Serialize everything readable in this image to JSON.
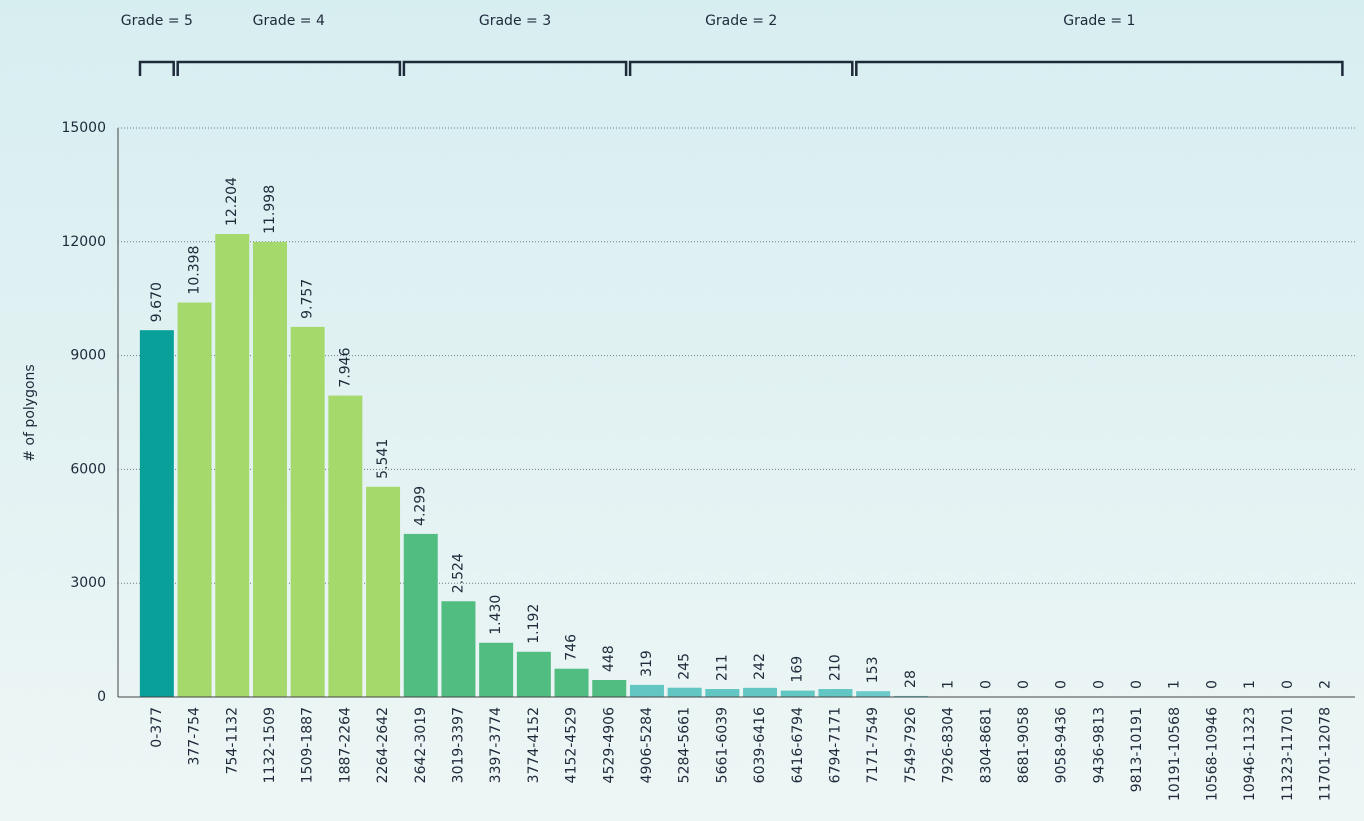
{
  "chart_data": {
    "type": "bar",
    "y_label": "# of polygons",
    "categories": [
      "0-377",
      "377-754",
      "754-1132",
      "1132-1509",
      "1509-1887",
      "1887-2264",
      "2264-2642",
      "2642-3019",
      "3019-3397",
      "3397-3774",
      "3774-4152",
      "4152-4529",
      "4529-4906",
      "4906-5284",
      "5284-5661",
      "5661-6039",
      "6039-6416",
      "6416-6794",
      "6794-7171",
      "7171-7549",
      "7549-7926",
      "7926-8304",
      "8304-8681",
      "8681-9058",
      "9058-9436",
      "9436-9813",
      "9813-10191",
      "10191-10568",
      "10568-10946",
      "10946-11323",
      "11323-11701",
      "11701-12078"
    ],
    "series": [
      {
        "name": "Grade = 5",
        "color": "#0aa09a",
        "values": [
          9670,
          null,
          null,
          null,
          null,
          null,
          null,
          null,
          null,
          null,
          null,
          null,
          null,
          null,
          null,
          null,
          null,
          null,
          null,
          null,
          null,
          null,
          null,
          null,
          null,
          null,
          null,
          null,
          null,
          null,
          null,
          null
        ],
        "value_labels": [
          "9.670",
          null,
          null,
          null,
          null,
          null,
          null,
          null,
          null,
          null,
          null,
          null,
          null,
          null,
          null,
          null,
          null,
          null,
          null,
          null,
          null,
          null,
          null,
          null,
          null,
          null,
          null,
          null,
          null,
          null,
          null,
          null
        ]
      },
      {
        "name": "Grade = 4",
        "color": "#a5d96b",
        "values": [
          null,
          10398,
          12204,
          11998,
          9757,
          7946,
          5541,
          null,
          null,
          null,
          null,
          null,
          null,
          null,
          null,
          null,
          null,
          null,
          null,
          null,
          null,
          null,
          null,
          null,
          null,
          null,
          null,
          null,
          null,
          null,
          null,
          null
        ],
        "value_labels": [
          null,
          "10.398",
          "12.204",
          "11.998",
          "9.757",
          "7.946",
          "5.541",
          null,
          null,
          null,
          null,
          null,
          null,
          null,
          null,
          null,
          null,
          null,
          null,
          null,
          null,
          null,
          null,
          null,
          null,
          null,
          null,
          null,
          null,
          null,
          null,
          null
        ]
      },
      {
        "name": "Grade = 3",
        "color": "#52bd80",
        "values": [
          null,
          null,
          null,
          null,
          null,
          null,
          null,
          4299,
          2524,
          1430,
          1192,
          746,
          448,
          null,
          null,
          null,
          null,
          null,
          null,
          null,
          null,
          null,
          null,
          null,
          null,
          null,
          null,
          null,
          null,
          null,
          null,
          null
        ],
        "value_labels": [
          null,
          null,
          null,
          null,
          null,
          null,
          null,
          "4.299",
          "2.524",
          "1.430",
          "1.192",
          "746",
          "448",
          null,
          null,
          null,
          null,
          null,
          null,
          null,
          null,
          null,
          null,
          null,
          null,
          null,
          null,
          null,
          null,
          null,
          null,
          null
        ]
      },
      {
        "name": "Grade = 2",
        "color": "#62c6c2",
        "values": [
          null,
          null,
          null,
          null,
          null,
          null,
          null,
          null,
          null,
          null,
          null,
          null,
          null,
          319,
          245,
          211,
          242,
          169,
          210,
          null,
          null,
          null,
          null,
          null,
          null,
          null,
          null,
          null,
          null,
          null,
          null,
          null
        ],
        "value_labels": [
          null,
          null,
          null,
          null,
          null,
          null,
          null,
          null,
          null,
          null,
          null,
          null,
          null,
          "319",
          "245",
          "211",
          "242",
          "169",
          "210",
          null,
          null,
          null,
          null,
          null,
          null,
          null,
          null,
          null,
          null,
          null,
          null,
          null
        ]
      },
      {
        "name": "Grade = 1",
        "color": "#6ccaca",
        "values": [
          null,
          null,
          null,
          null,
          null,
          null,
          null,
          null,
          null,
          null,
          null,
          null,
          null,
          null,
          null,
          null,
          null,
          null,
          null,
          153,
          28,
          1,
          0,
          0,
          0,
          0,
          0,
          1,
          0,
          1,
          0,
          2
        ],
        "value_labels": [
          null,
          null,
          null,
          null,
          null,
          null,
          null,
          null,
          null,
          null,
          null,
          null,
          null,
          null,
          null,
          null,
          null,
          null,
          null,
          "153",
          "28",
          "1",
          "0",
          "0",
          "0",
          "0",
          "0",
          "1",
          "0",
          "1",
          "0",
          "2"
        ]
      }
    ],
    "ylim": [
      0,
      15000
    ],
    "yticks": [
      0,
      3000,
      6000,
      9000,
      12000,
      15000
    ],
    "grid": true
  }
}
